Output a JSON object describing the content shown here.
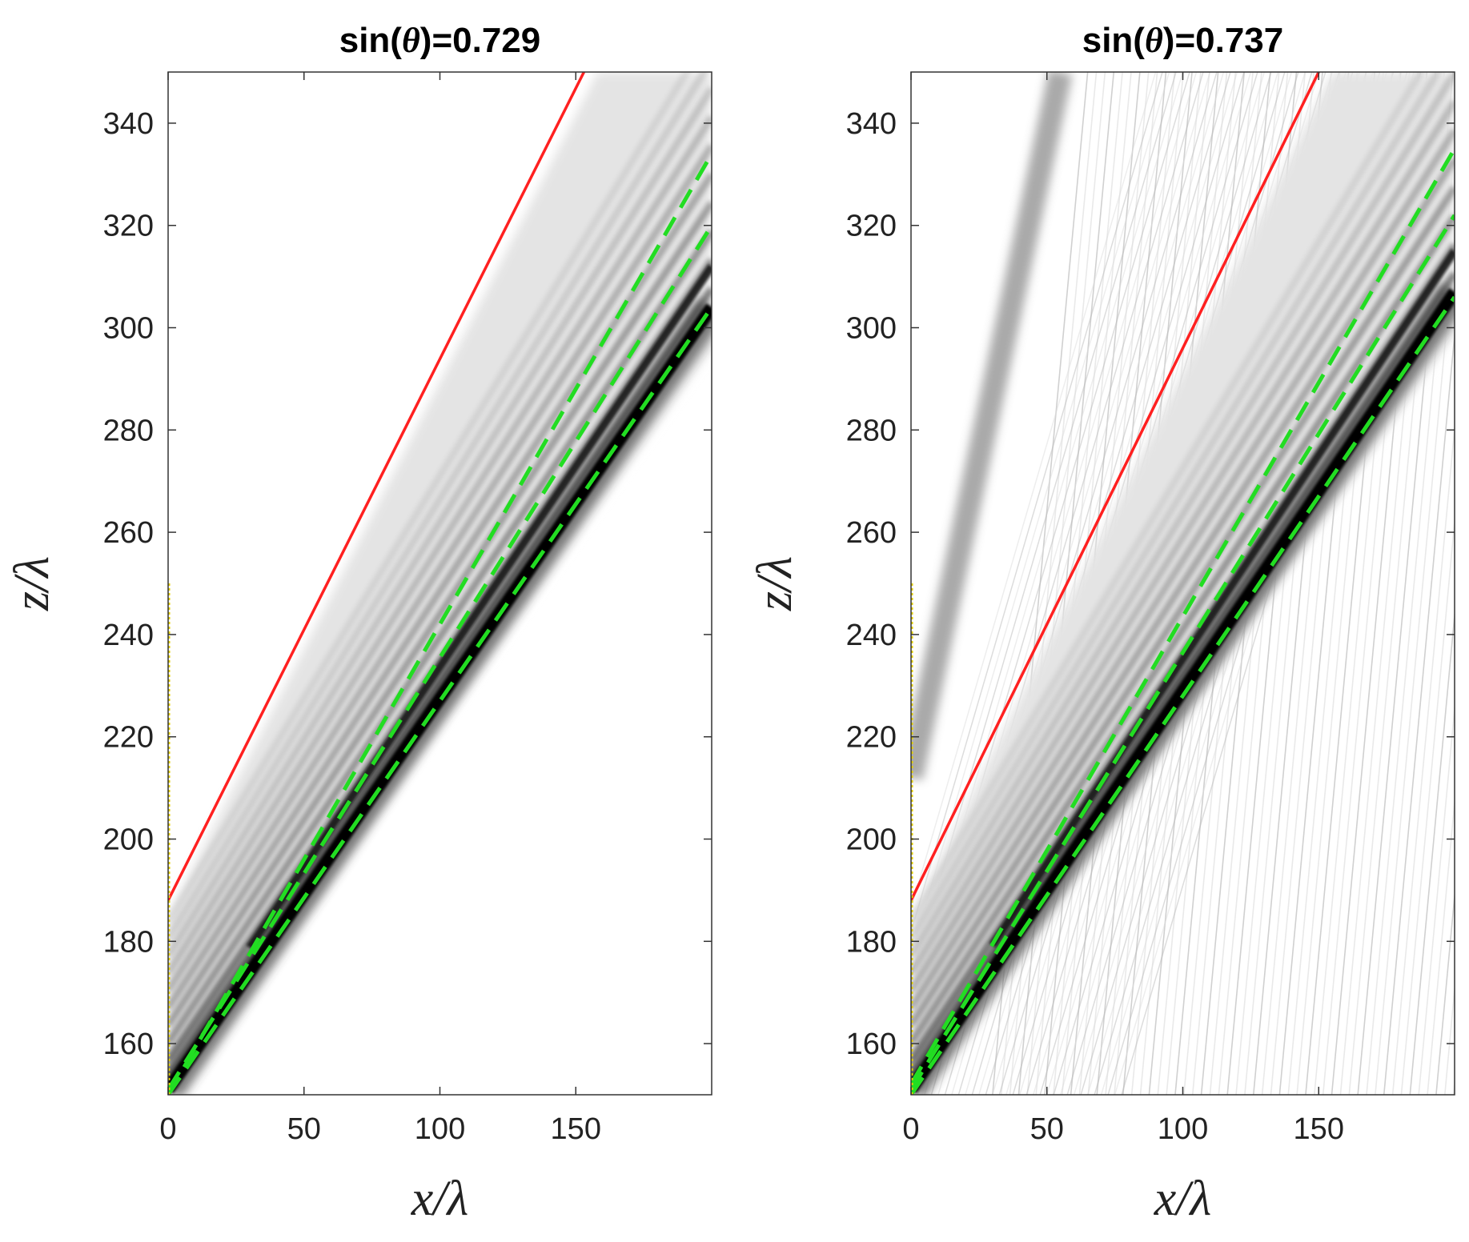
{
  "chart_data": [
    {
      "type": "heatmap",
      "title_prefix": "sin(",
      "title_symbol": "θ",
      "title_suffix": ")=0.729",
      "xlabel": "x/λ",
      "ylabel": "z/λ",
      "xlim": [
        0,
        200
      ],
      "ylim": [
        150,
        350
      ],
      "xticks": [
        0,
        50,
        100,
        150
      ],
      "yticks": [
        160,
        180,
        200,
        220,
        240,
        260,
        280,
        300,
        320,
        340
      ],
      "background_field": "none",
      "main_beam": {
        "x": [
          0,
          200
        ],
        "z": [
          150,
          302
        ],
        "width": 8,
        "bands": 6,
        "band_spacing": 3.2
      },
      "lines": [
        {
          "name": "red reference",
          "color": "#ff2020",
          "style": "solid",
          "x": [
            0,
            153
          ],
          "z": [
            188,
            350
          ]
        },
        {
          "name": "green bound 1",
          "color": "#22dd22",
          "style": "dashed",
          "x": [
            0,
            200
          ],
          "z": [
            150,
            334
          ]
        },
        {
          "name": "green bound 2",
          "color": "#22dd22",
          "style": "dashed",
          "x": [
            0,
            200
          ],
          "z": [
            151,
            320
          ]
        },
        {
          "name": "green bound 3",
          "color": "#22dd22",
          "style": "dashed",
          "x": [
            0,
            200
          ],
          "z": [
            150,
            304
          ]
        },
        {
          "name": "yellow boundary",
          "color": "#e6d000",
          "style": "dotted",
          "x": [
            0,
            0
          ],
          "z": [
            150,
            250
          ]
        }
      ]
    },
    {
      "type": "heatmap",
      "title_prefix": "sin(",
      "title_symbol": "θ",
      "title_suffix": ")=0.737",
      "xlabel": "x/λ",
      "ylabel": "z/λ",
      "xlim": [
        0,
        200
      ],
      "ylim": [
        150,
        350
      ],
      "xticks": [
        0,
        50,
        100,
        150
      ],
      "yticks": [
        160,
        180,
        200,
        220,
        240,
        260,
        280,
        300,
        320,
        340
      ],
      "background_field": "streaks",
      "main_beam": {
        "x": [
          0,
          200
        ],
        "z": [
          150,
          305
        ],
        "width": 8,
        "bands": 6,
        "band_spacing": 3.2
      },
      "lines": [
        {
          "name": "red reference",
          "color": "#ff2020",
          "style": "solid",
          "x": [
            0,
            150
          ],
          "z": [
            188,
            350
          ]
        },
        {
          "name": "green bound 1",
          "color": "#22dd22",
          "style": "dashed",
          "x": [
            0,
            200
          ],
          "z": [
            152,
            335
          ]
        },
        {
          "name": "green bound 2",
          "color": "#22dd22",
          "style": "dashed",
          "x": [
            0,
            200
          ],
          "z": [
            151,
            322
          ]
        },
        {
          "name": "green bound 3",
          "color": "#22dd22",
          "style": "dashed",
          "x": [
            0,
            200
          ],
          "z": [
            150,
            306
          ]
        },
        {
          "name": "yellow boundary",
          "color": "#e6d000",
          "style": "dotted",
          "x": [
            0,
            0
          ],
          "z": [
            150,
            250
          ]
        }
      ]
    }
  ]
}
